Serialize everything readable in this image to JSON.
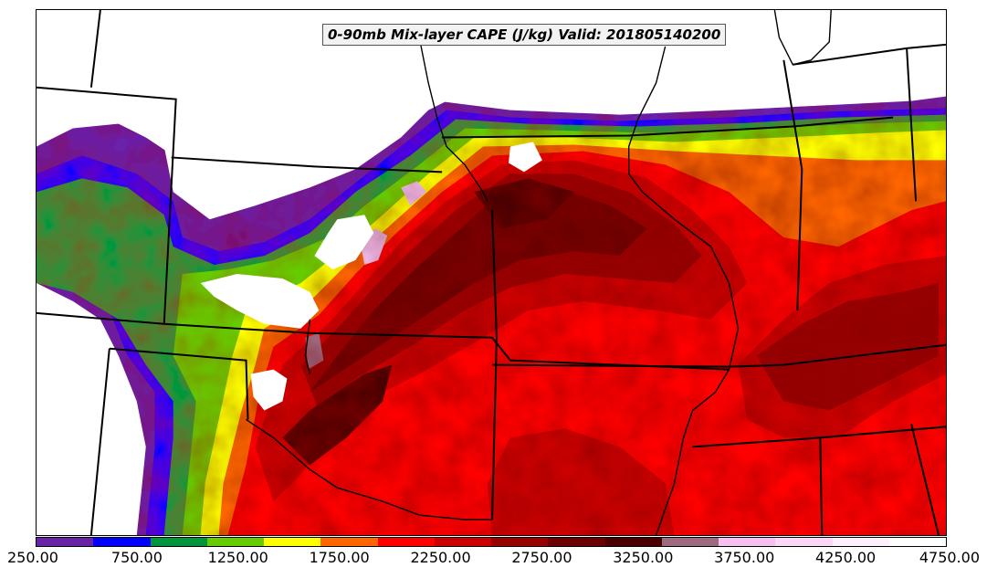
{
  "title": "0-90mb Mix-layer CAPE (J/kg) Valid: 201805140200",
  "colorbar": {
    "min": 250,
    "max": 4750,
    "step": 250,
    "colors": [
      "#6a22a8",
      "#0000ff",
      "#00963c",
      "#66cc00",
      "#ffff00",
      "#ff6600",
      "#ff0000",
      "#cc0000",
      "#990000",
      "#6b0000",
      "#4a0000",
      "#9e6a80",
      "#f6c0f0",
      "#fbd8f8",
      "#fff0ff",
      "#ffffff"
    ],
    "tick_labels": [
      "250.00",
      "750.00",
      "1250.00",
      "1750.00",
      "2250.00",
      "2750.00",
      "3250.00",
      "3750.00",
      "4250.00",
      "4750.00"
    ],
    "tick_values": [
      250,
      750,
      1250,
      1750,
      2250,
      2750,
      3250,
      3750,
      4250,
      4750
    ]
  }
}
